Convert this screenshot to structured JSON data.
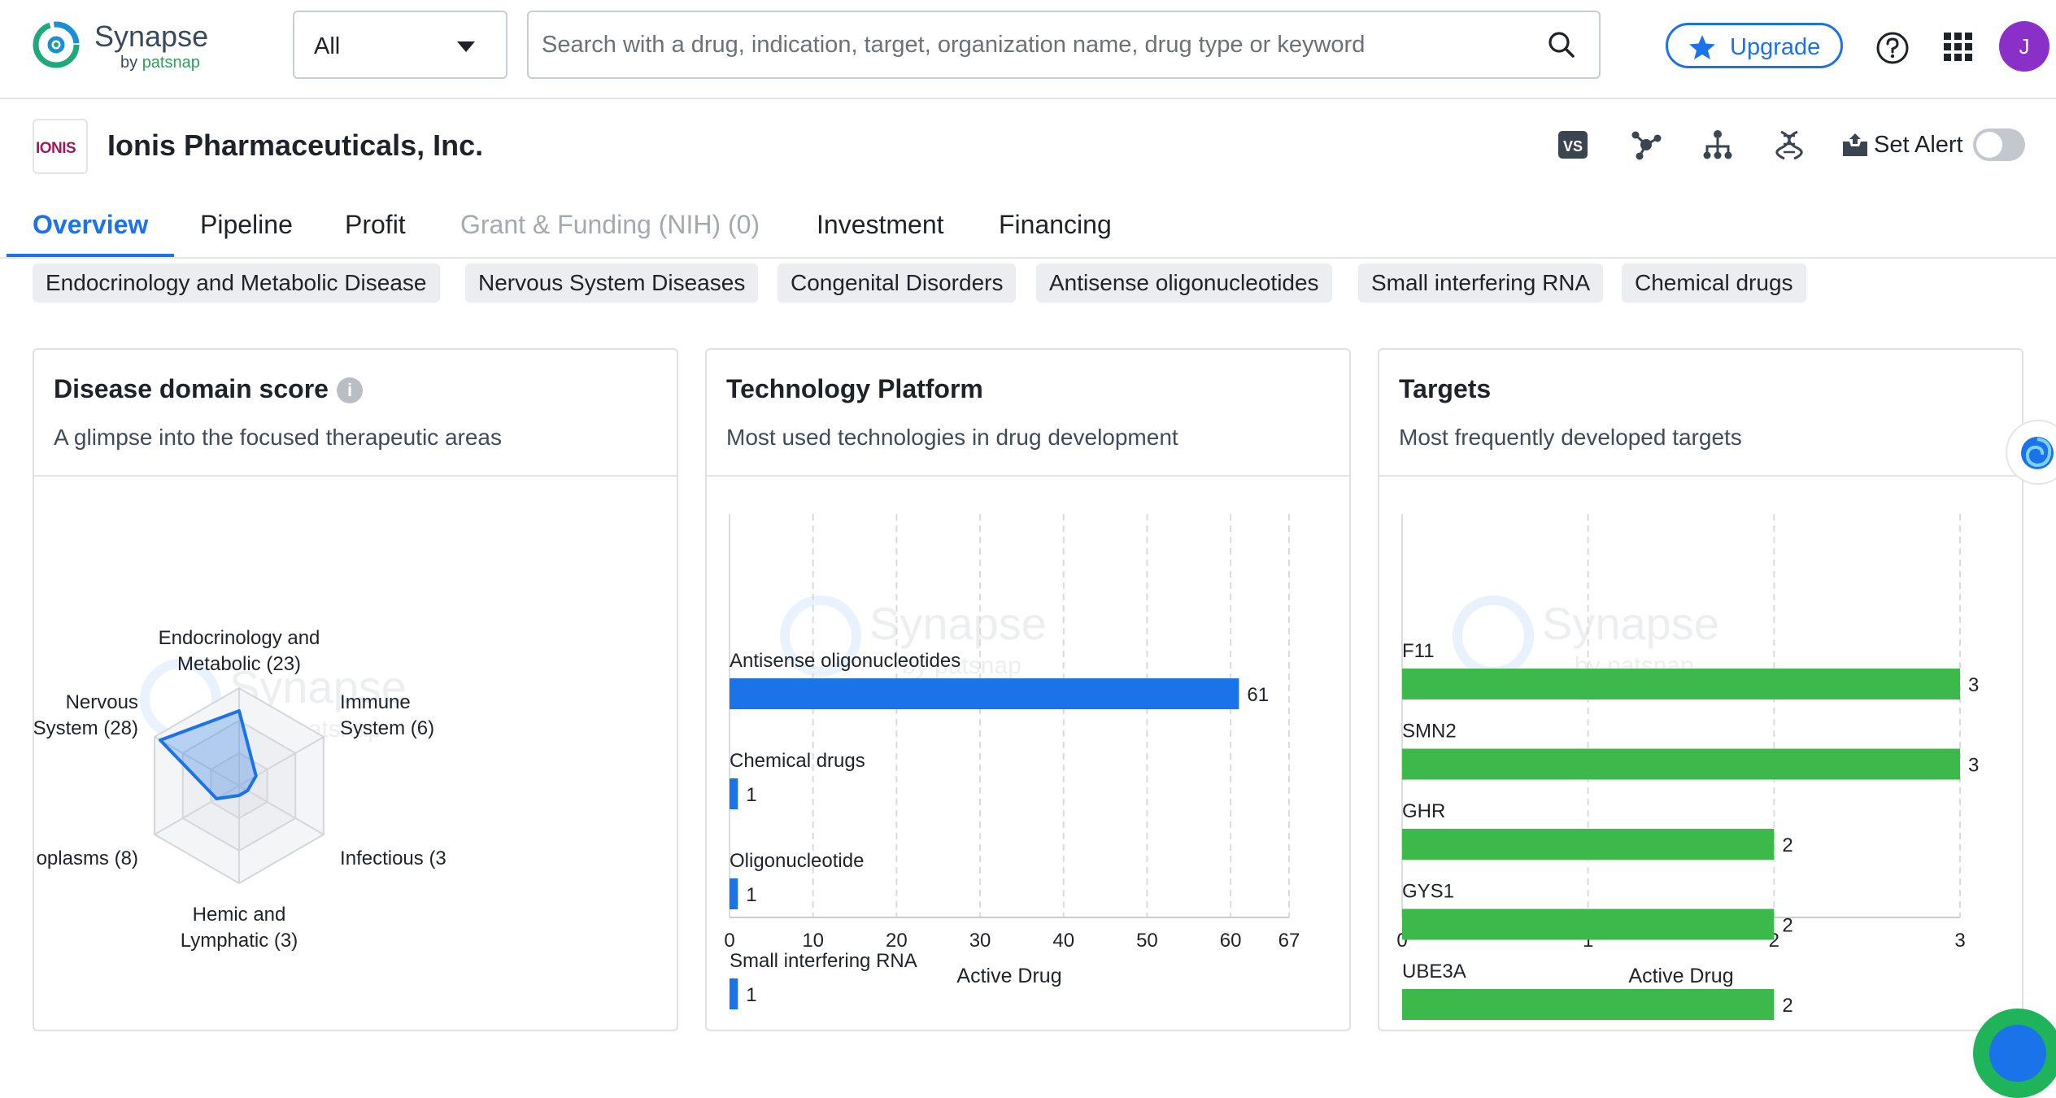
{
  "app": {
    "brand_name": "Synapse",
    "brand_by": "by",
    "brand_by_vendor": "patsnap",
    "scope_select_value": "All",
    "search_placeholder": "Search with a drug, indication, target, organization name, drug type or keyword",
    "upgrade_label": "Upgrade",
    "avatar_initial": "J",
    "accent_color": "#1a73e8"
  },
  "company": {
    "logo_text": "IONIS",
    "name": "Ionis Pharmaceuticals, Inc.",
    "vs_label": "VS",
    "set_alert_label": "Set Alert",
    "alert_enabled": false
  },
  "tabs": [
    {
      "label": "Overview",
      "active": true,
      "disabled": false
    },
    {
      "label": "Pipeline",
      "active": false,
      "disabled": false
    },
    {
      "label": "Profit",
      "active": false,
      "disabled": false
    },
    {
      "label": "Grant & Funding (NIH) (0)",
      "active": false,
      "disabled": true
    },
    {
      "label": "Investment",
      "active": false,
      "disabled": false
    },
    {
      "label": "Financing",
      "active": false,
      "disabled": false
    }
  ],
  "tags": [
    "Endocrinology and Metabolic Disease",
    "Nervous System Diseases",
    "Congenital Disorders",
    "Antisense oligonucleotides",
    "Small interfering RNA",
    "Chemical drugs"
  ],
  "cards": {
    "disease": {
      "title": "Disease domain score",
      "subtitle": "A glimpse into the focused therapeutic areas",
      "info_icon": "info-icon"
    },
    "tech": {
      "title": "Technology Platform",
      "subtitle": "Most used technologies in drug development"
    },
    "targets": {
      "title": "Targets",
      "subtitle": "Most frequently developed targets"
    },
    "watermark_name": "Synapse",
    "watermark_by": "by patsnap"
  },
  "chart_data": [
    {
      "type": "radar",
      "axes": [
        {
          "label": [
            "Endocrinology and",
            "Metabolic (23)"
          ],
          "value": 23
        },
        {
          "label": [
            "Immune",
            "System (6)"
          ],
          "value": 6
        },
        {
          "label": [
            "Infectious (3"
          ],
          "value": 3
        },
        {
          "label": [
            "Hemic and",
            "Lymphatic (3)"
          ],
          "value": 3
        },
        {
          "label": [
            "oplasms (8)"
          ],
          "value": 8
        },
        {
          "label": [
            "Nervous",
            "System (28)"
          ],
          "value": 28
        }
      ],
      "max": 30,
      "color": "#1a73e8"
    },
    {
      "type": "bar",
      "orientation": "horizontal",
      "categories": [
        "Antisense oligonucleotides",
        "Chemical drugs",
        "Oligonucleotide",
        "Small interfering RNA"
      ],
      "values": [
        61,
        1,
        1,
        1
      ],
      "xticks": [
        0,
        10,
        20,
        30,
        40,
        50,
        60,
        67
      ],
      "xlim": [
        0,
        67
      ],
      "xlabel": "Active Drug",
      "grid": true,
      "color": "#1a73e8"
    },
    {
      "type": "bar",
      "orientation": "horizontal",
      "categories": [
        "F11",
        "SMN2",
        "GHR",
        "GYS1",
        "UBE3A"
      ],
      "values": [
        3,
        3,
        2,
        2,
        2
      ],
      "xticks": [
        0,
        1,
        2,
        3
      ],
      "xlim": [
        0,
        3
      ],
      "xlabel": "Active Drug",
      "grid": true,
      "color": "#3db84a"
    }
  ]
}
